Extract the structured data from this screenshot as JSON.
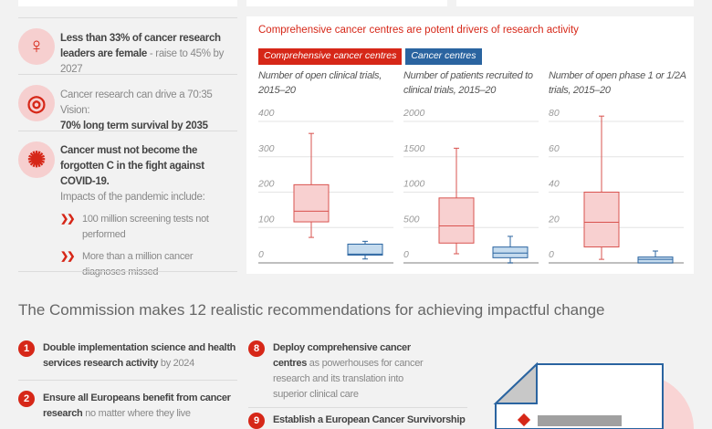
{
  "facts": [
    {
      "bold": "Less than 33% of cancer research leaders are female",
      "rest": " - raise to 45% by 2027",
      "icon": "female-symbol-icon"
    },
    {
      "pre": "Cancer research can drive a 70:35 Vision:",
      "bold": "70% long term survival by 2035",
      "icon": "target-icon"
    },
    {
      "bold": "Cancer must not become the forgotten C in the fight against COVID-19.",
      "rest": "Impacts of the pandemic include:",
      "icon": "virus-icon",
      "bullets": [
        "100 million screening tests not performed",
        "More than a million cancer diagnoses missed"
      ]
    }
  ],
  "chart_data": {
    "type": "box",
    "title": "Comprehensive cancer centres are potent drivers of research activity",
    "legend": [
      {
        "name": "Comprehensive cancer centres",
        "color": "#d62718"
      },
      {
        "name": "Cancer centres",
        "color": "#2a64a0"
      }
    ],
    "panels": [
      {
        "title": "Number of open clinical trials, 2015–20",
        "ticks": [
          "0",
          "100",
          "200",
          "300",
          "400"
        ],
        "ylim": [
          0,
          400
        ],
        "series": [
          {
            "name": "Comprehensive cancer centres",
            "min": 72,
            "q1": 116,
            "median": 146,
            "q3": 221,
            "max": 366
          },
          {
            "name": "Cancer centres",
            "min": 11,
            "q1": 22,
            "median": 25,
            "q3": 53,
            "max": 61
          }
        ]
      },
      {
        "title": "Number of patients recruited to clinical trials, 2015–20",
        "ticks": [
          "0",
          "500",
          "1000",
          "1500",
          "2000"
        ],
        "ylim": [
          0,
          2000
        ],
        "series": [
          {
            "name": "Comprehensive cancer centres",
            "min": 129,
            "q1": 280,
            "median": 522,
            "q3": 918,
            "max": 1621
          },
          {
            "name": "Cancer centres",
            "min": 0,
            "q1": 73,
            "median": 138,
            "q3": 224,
            "max": 375
          }
        ]
      },
      {
        "title": "Number of open phase 1 or 1/2A trials, 2015–20",
        "ticks": [
          "0",
          "20",
          "40",
          "60",
          "80"
        ],
        "ylim": [
          0,
          80
        ],
        "series": [
          {
            "name": "Comprehensive cancer centres",
            "min": 2,
            "q1": 9,
            "median": 23,
            "q3": 40,
            "max": 83
          },
          {
            "name": "Cancer centres",
            "min": 0,
            "q1": 0,
            "median": 2,
            "q3": 3.3,
            "max": 6.7
          }
        ]
      }
    ]
  },
  "recs": {
    "heading": "The Commission makes 12 realistic recommendations for achieving impactful change",
    "items": [
      {
        "n": "1",
        "bold": "Double implementation science and health services research activity",
        "rest": " by 2024"
      },
      {
        "n": "2",
        "bold": "Ensure all Europeans benefit from cancer research",
        "rest": " no matter where they live"
      },
      {
        "n": "8",
        "bold": "Deploy comprehensive cancer centres",
        "rest": " as powerhouses for cancer research and its translation into superior clinical care"
      },
      {
        "n": "9",
        "bold": "Establish a European Cancer Survivorship",
        "rest": ""
      }
    ]
  }
}
